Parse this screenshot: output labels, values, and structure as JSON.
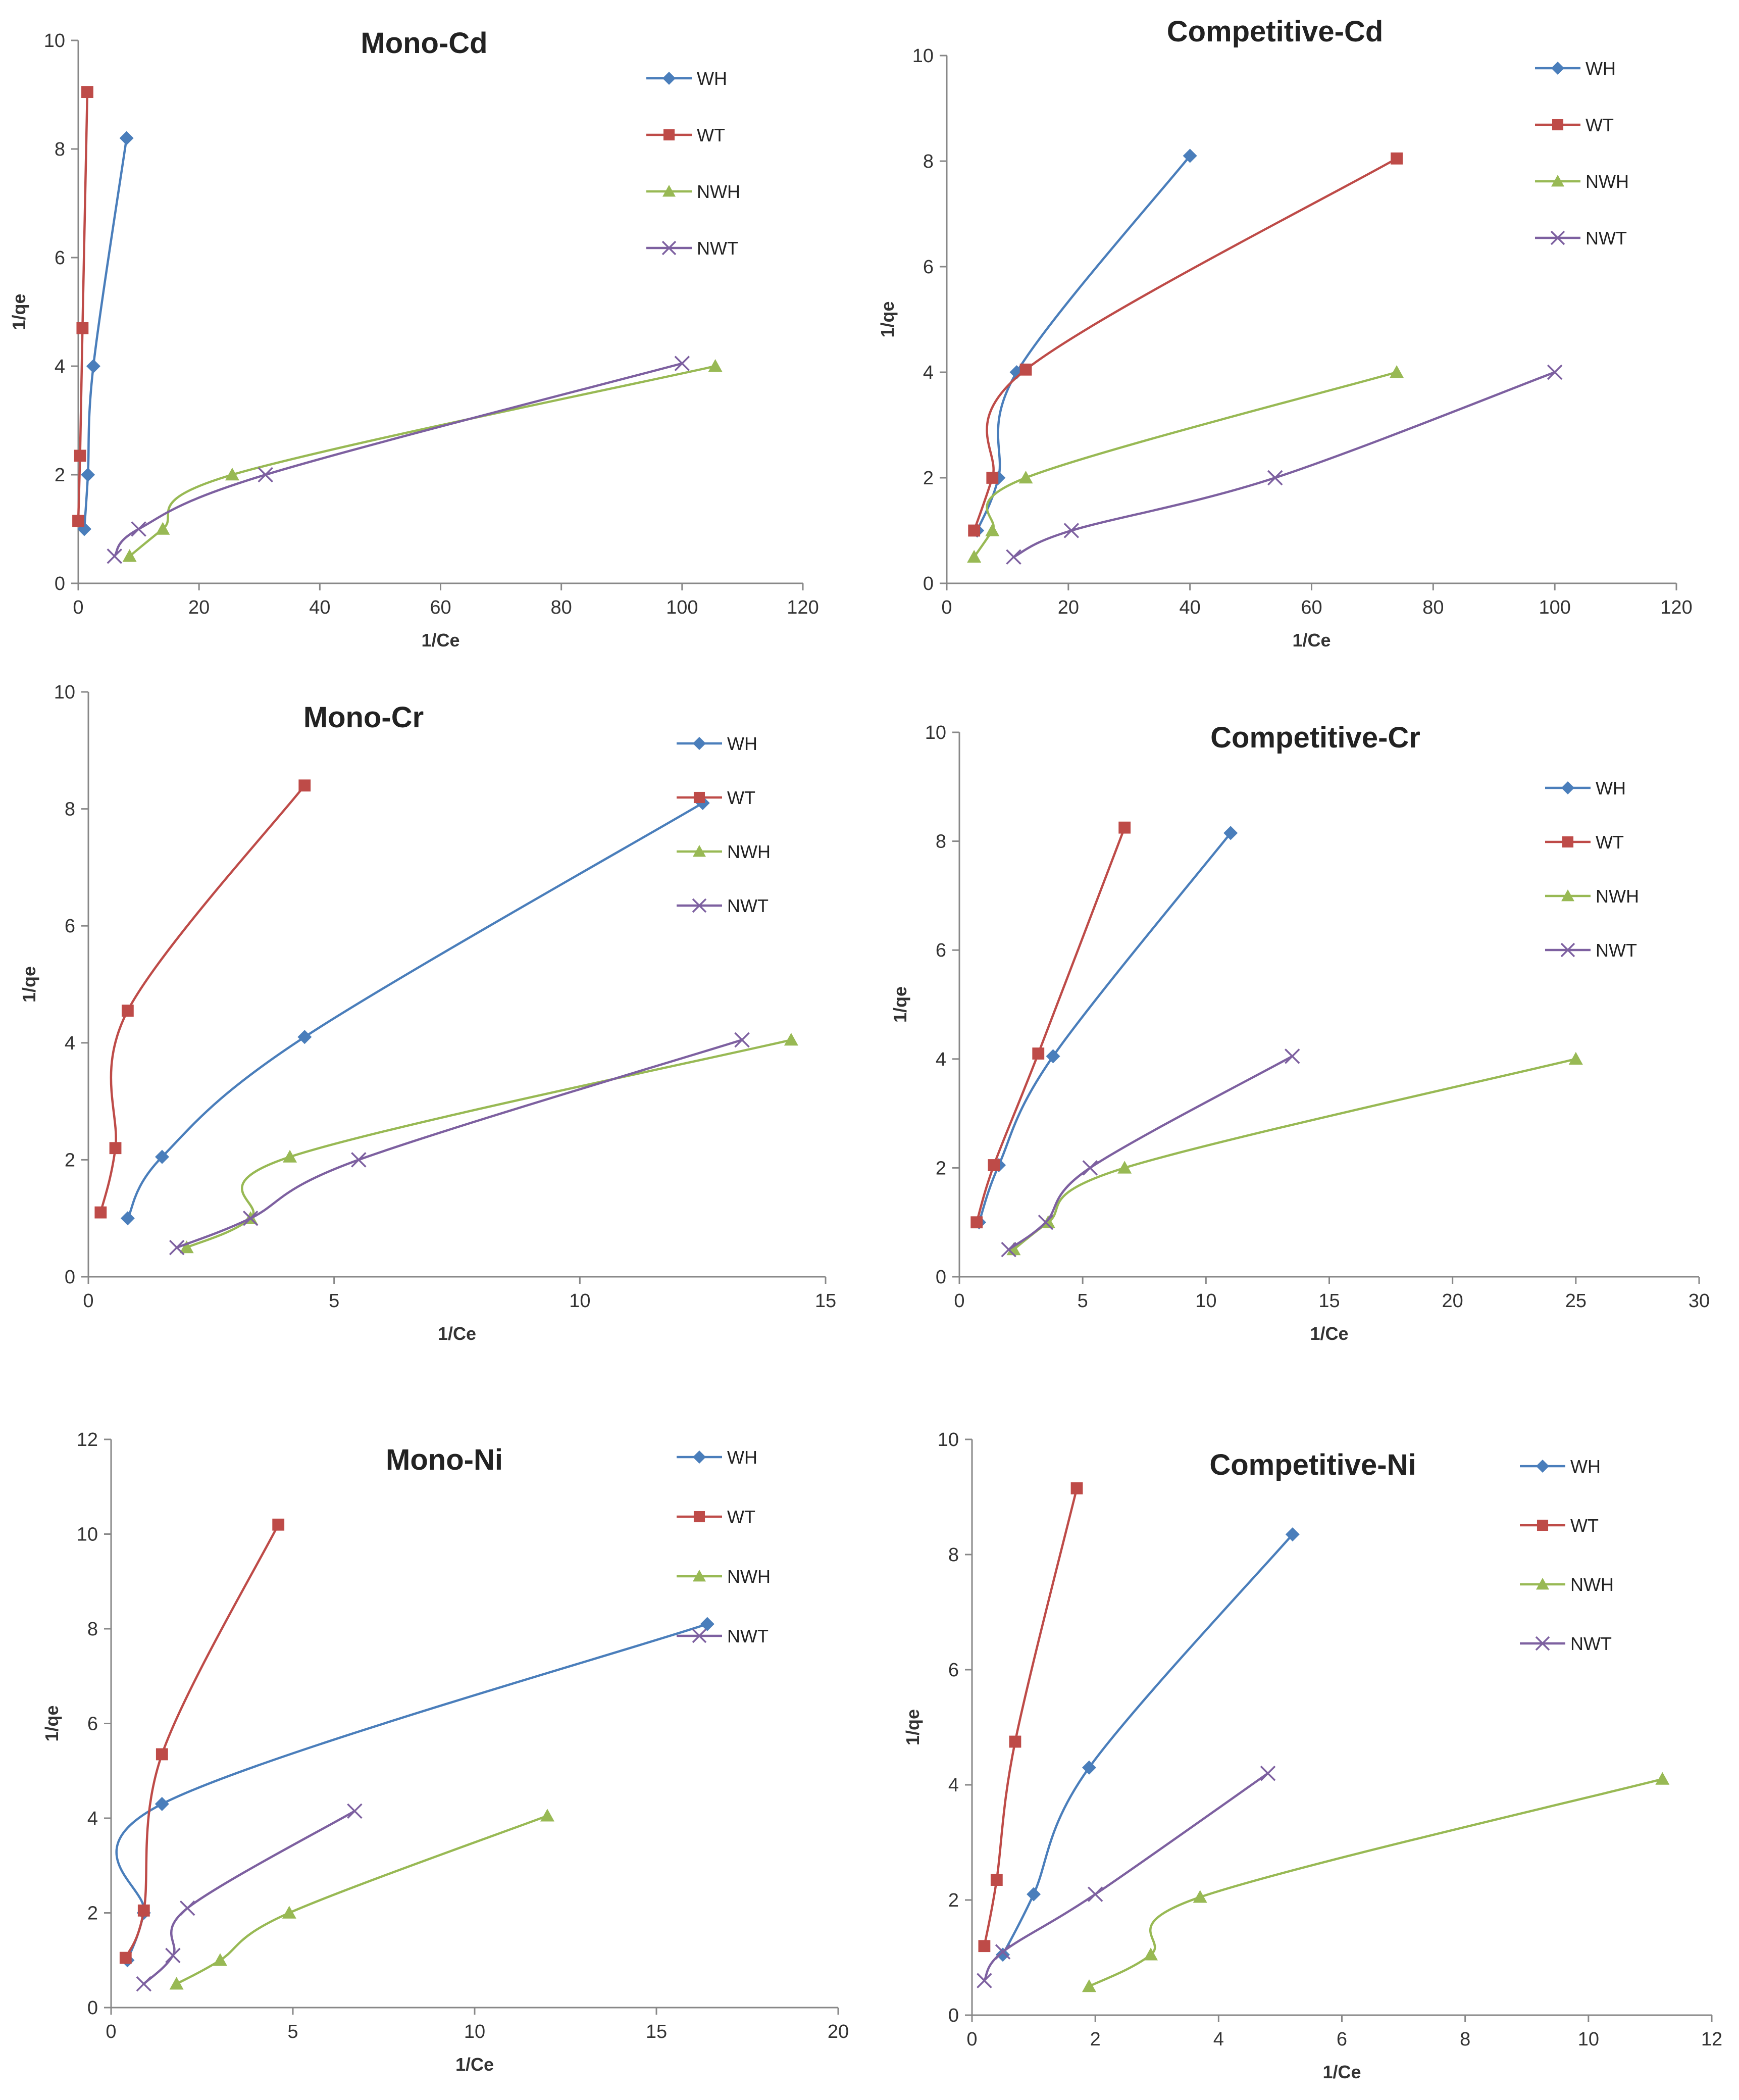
{
  "figure": {
    "colors": {
      "WH": "#4a7ebb",
      "WT": "#be4b48",
      "NWH": "#98b954",
      "NWT": "#7d60a0"
    },
    "series_names": [
      "WH",
      "WT",
      "NWH",
      "NWT"
    ]
  },
  "chart_data": [
    {
      "type": "line",
      "title": "Mono-Cd",
      "xlabel": "1/Ce",
      "ylabel": "1/qe",
      "xlim": [
        0,
        120
      ],
      "ylim": [
        0,
        10
      ],
      "xticks": [
        0,
        20,
        40,
        60,
        80,
        100,
        120
      ],
      "yticks": [
        0,
        2,
        4,
        6,
        8,
        10
      ],
      "series": [
        {
          "name": "WH",
          "marker": "diamond",
          "x": [
            1,
            1.6,
            2.5,
            8
          ],
          "y": [
            1,
            2,
            4,
            8.2
          ]
        },
        {
          "name": "WT",
          "marker": "square",
          "x": [
            0,
            0.3,
            0.7,
            1.5
          ],
          "y": [
            1.15,
            2.35,
            4.7,
            9.05
          ]
        },
        {
          "name": "NWH",
          "marker": "triangle",
          "x": [
            8.5,
            14,
            25.5,
            105.5
          ],
          "y": [
            0.5,
            1,
            2,
            4
          ]
        },
        {
          "name": "NWT",
          "marker": "x",
          "x": [
            6,
            10,
            31,
            100
          ],
          "y": [
            0.5,
            1,
            2,
            4.05
          ]
        }
      ]
    },
    {
      "type": "line",
      "title": "Competitive-Cd",
      "xlabel": "1/Ce",
      "ylabel": "1/qe",
      "xlim": [
        0,
        120
      ],
      "ylim": [
        0,
        10
      ],
      "xticks": [
        0,
        20,
        40,
        60,
        80,
        100,
        120
      ],
      "yticks": [
        0,
        2,
        4,
        6,
        8,
        10
      ],
      "series": [
        {
          "name": "WH",
          "marker": "diamond",
          "x": [
            5,
            8.5,
            11.5,
            40
          ],
          "y": [
            1,
            2,
            4,
            8.1
          ]
        },
        {
          "name": "WT",
          "marker": "square",
          "x": [
            4.5,
            7.5,
            13,
            74
          ],
          "y": [
            1,
            2,
            4.05,
            8.05
          ]
        },
        {
          "name": "NWH",
          "marker": "triangle",
          "x": [
            4.5,
            7.5,
            13,
            74
          ],
          "y": [
            0.5,
            1,
            2,
            4
          ]
        },
        {
          "name": "NWT",
          "marker": "x",
          "x": [
            11,
            20.5,
            54,
            100
          ],
          "y": [
            0.5,
            1,
            2,
            4
          ]
        }
      ]
    },
    {
      "type": "line",
      "title": "Mono-Cr",
      "xlabel": "1/Ce",
      "ylabel": "1/qe",
      "xlim": [
        0,
        15
      ],
      "ylim": [
        0,
        10
      ],
      "xticks": [
        0,
        5,
        10,
        15
      ],
      "yticks": [
        0,
        2,
        4,
        6,
        8,
        10
      ],
      "series": [
        {
          "name": "WH",
          "marker": "diamond",
          "x": [
            0.8,
            1.5,
            4.4,
            12.5
          ],
          "y": [
            1,
            2.05,
            4.1,
            8.1
          ]
        },
        {
          "name": "WT",
          "marker": "square",
          "x": [
            0.25,
            0.55,
            0.8,
            4.4
          ],
          "y": [
            1.1,
            2.2,
            4.55,
            8.4
          ]
        },
        {
          "name": "NWH",
          "marker": "triangle",
          "x": [
            2,
            3.3,
            4.1,
            14.3
          ],
          "y": [
            0.5,
            1,
            2.05,
            4.05
          ]
        },
        {
          "name": "NWT",
          "marker": "x",
          "x": [
            1.8,
            3.3,
            5.5,
            13.3
          ],
          "y": [
            0.5,
            1,
            2,
            4.05
          ]
        }
      ]
    },
    {
      "type": "line",
      "title": "Competitive-Cr",
      "xlabel": "1/Ce",
      "ylabel": "1/qe",
      "xlim": [
        0,
        30
      ],
      "ylim": [
        0,
        10
      ],
      "xticks": [
        0,
        5,
        10,
        15,
        20,
        25,
        30
      ],
      "yticks": [
        0,
        2,
        4,
        6,
        8,
        10
      ],
      "series": [
        {
          "name": "WH",
          "marker": "diamond",
          "x": [
            0.8,
            1.6,
            3.8,
            11
          ],
          "y": [
            1,
            2.05,
            4.05,
            8.15
          ]
        },
        {
          "name": "WT",
          "marker": "square",
          "x": [
            0.7,
            1.4,
            3.2,
            6.7
          ],
          "y": [
            1,
            2.05,
            4.1,
            8.25
          ]
        },
        {
          "name": "NWH",
          "marker": "triangle",
          "x": [
            2.2,
            3.6,
            6.7,
            25
          ],
          "y": [
            0.5,
            1,
            2,
            4
          ]
        },
        {
          "name": "NWT",
          "marker": "x",
          "x": [
            2,
            3.5,
            5.3,
            13.5
          ],
          "y": [
            0.5,
            1,
            2,
            4.05
          ]
        }
      ]
    },
    {
      "type": "line",
      "title": "Mono-Ni",
      "xlabel": "1/Ce",
      "ylabel": "1/qe",
      "xlim": [
        0,
        20
      ],
      "ylim": [
        0,
        12
      ],
      "xticks": [
        0,
        5,
        10,
        15,
        20
      ],
      "yticks": [
        0,
        2,
        4,
        6,
        8,
        10,
        12
      ],
      "series": [
        {
          "name": "WH",
          "marker": "diamond",
          "x": [
            0.45,
            0.9,
            1.4,
            16.4
          ],
          "y": [
            1,
            2,
            4.3,
            8.1
          ]
        },
        {
          "name": "WT",
          "marker": "square",
          "x": [
            0.4,
            0.9,
            1.4,
            4.6
          ],
          "y": [
            1.05,
            2.05,
            5.35,
            10.2
          ]
        },
        {
          "name": "NWH",
          "marker": "triangle",
          "x": [
            1.8,
            3,
            4.9,
            12
          ],
          "y": [
            0.5,
            1,
            2,
            4.05
          ]
        },
        {
          "name": "NWT",
          "marker": "x",
          "x": [
            0.9,
            1.7,
            2.1,
            6.7
          ],
          "y": [
            0.5,
            1.1,
            2.1,
            4.15
          ]
        }
      ]
    },
    {
      "type": "line",
      "title": "Competitive-Ni",
      "xlabel": "1/Ce",
      "ylabel": "1/qe",
      "xlim": [
        0,
        12
      ],
      "ylim": [
        0,
        10
      ],
      "xticks": [
        0,
        2,
        4,
        6,
        8,
        10,
        12
      ],
      "yticks": [
        0,
        2,
        4,
        6,
        8,
        10
      ],
      "series": [
        {
          "name": "WH",
          "marker": "diamond",
          "x": [
            0.5,
            1,
            1.9,
            5.2
          ],
          "y": [
            1.05,
            2.1,
            4.3,
            8.35
          ]
        },
        {
          "name": "WT",
          "marker": "square",
          "x": [
            0.2,
            0.4,
            0.7,
            1.7
          ],
          "y": [
            1.2,
            2.35,
            4.75,
            9.15
          ]
        },
        {
          "name": "NWH",
          "marker": "triangle",
          "x": [
            1.9,
            2.9,
            3.7,
            11.2
          ],
          "y": [
            0.5,
            1.05,
            2.05,
            4.1
          ]
        },
        {
          "name": "NWT",
          "marker": "x",
          "x": [
            0.2,
            0.5,
            2,
            4.8
          ],
          "y": [
            0.6,
            1.1,
            2.1,
            4.2
          ]
        }
      ]
    }
  ]
}
